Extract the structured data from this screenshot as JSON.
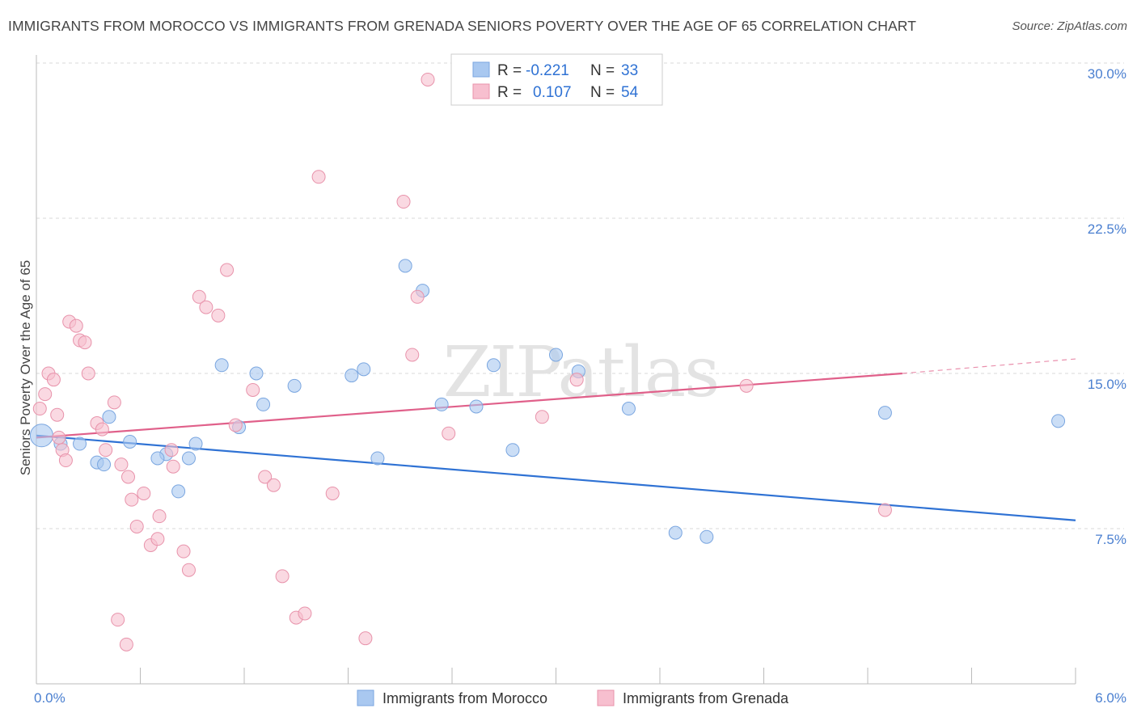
{
  "chart_data": {
    "type": "scatter",
    "title": "IMMIGRANTS FROM MOROCCO VS IMMIGRANTS FROM GRENADA SENIORS POVERTY OVER THE AGE OF 65 CORRELATION CHART",
    "source": "Source: ZipAtlas.com",
    "xlabel": "",
    "ylabel": "Seniors Poverty Over the Age of 65",
    "xlim": [
      0,
      6
    ],
    "ylim": [
      0,
      30
    ],
    "x_tick_labels": {
      "left": "0.0%",
      "right": "6.0%"
    },
    "y_ticks": [
      {
        "value": 7.5,
        "label": "7.5%"
      },
      {
        "value": 15,
        "label": "15.0%"
      },
      {
        "value": 22.5,
        "label": "22.5%"
      },
      {
        "value": 30,
        "label": "30.0%"
      }
    ],
    "watermark": "ZIPatlas",
    "legend": {
      "rows": [
        {
          "r_label": "R =",
          "r_value": "-0.221",
          "n_label": "N =",
          "n_value": "33"
        },
        {
          "r_label": "R =",
          "r_value": "0.107",
          "n_label": "N =",
          "n_value": "54"
        }
      ]
    },
    "series": [
      {
        "name": "Immigrants from Morocco",
        "color": "#a9c8f0",
        "stroke": "#7aa6e0",
        "line_color": "#2f72d4",
        "trend": {
          "x0": 0.0,
          "y0": 12.0,
          "x1": 6.0,
          "y1": 7.9
        },
        "points": [
          [
            0.03,
            12.0,
            "large"
          ],
          [
            0.14,
            11.6
          ],
          [
            0.25,
            11.6
          ],
          [
            0.35,
            10.7
          ],
          [
            0.42,
            12.9
          ],
          [
            0.39,
            10.6
          ],
          [
            0.88,
            10.9
          ],
          [
            0.75,
            11.1
          ],
          [
            0.82,
            9.3
          ],
          [
            0.7,
            10.9
          ],
          [
            0.54,
            11.7
          ],
          [
            0.92,
            11.6
          ],
          [
            1.17,
            12.4
          ],
          [
            1.27,
            15.0
          ],
          [
            1.31,
            13.5
          ],
          [
            1.49,
            14.4
          ],
          [
            1.07,
            15.4
          ],
          [
            1.82,
            14.9
          ],
          [
            1.89,
            15.2
          ],
          [
            1.97,
            10.9
          ],
          [
            2.13,
            20.2
          ],
          [
            2.23,
            19.0
          ],
          [
            2.34,
            13.5
          ],
          [
            2.54,
            13.4
          ],
          [
            2.64,
            15.4
          ],
          [
            2.75,
            11.3
          ],
          [
            3.0,
            15.9
          ],
          [
            3.13,
            15.1
          ],
          [
            3.42,
            13.3
          ],
          [
            4.9,
            13.1
          ],
          [
            5.9,
            12.7
          ],
          [
            3.69,
            7.3
          ],
          [
            3.87,
            7.1
          ]
        ]
      },
      {
        "name": "Immigrants from Grenada",
        "color": "#f7bfcf",
        "stroke": "#e893ab",
        "line_color": "#e0608a",
        "trend": {
          "x0": 0.0,
          "y0": 11.9,
          "x1": 5.0,
          "y1": 15.0,
          "dash_x1": 6.0,
          "dash_y1": 15.7
        },
        "points": [
          [
            0.02,
            13.3
          ],
          [
            0.05,
            14.0
          ],
          [
            0.07,
            15.0
          ],
          [
            0.12,
            13.0
          ],
          [
            0.1,
            14.7
          ],
          [
            0.13,
            11.9
          ],
          [
            0.15,
            11.3
          ],
          [
            0.17,
            10.8
          ],
          [
            0.19,
            17.5
          ],
          [
            0.23,
            17.3
          ],
          [
            0.25,
            16.6
          ],
          [
            0.28,
            16.5
          ],
          [
            0.3,
            15.0
          ],
          [
            0.35,
            12.6
          ],
          [
            0.38,
            12.3
          ],
          [
            0.4,
            11.3
          ],
          [
            0.45,
            13.6
          ],
          [
            0.49,
            10.6
          ],
          [
            0.53,
            10.0
          ],
          [
            0.55,
            8.9
          ],
          [
            0.58,
            7.6
          ],
          [
            0.62,
            9.2
          ],
          [
            0.66,
            6.7
          ],
          [
            0.7,
            7.0
          ],
          [
            0.71,
            8.1
          ],
          [
            0.78,
            11.3
          ],
          [
            0.79,
            10.5
          ],
          [
            0.85,
            6.4
          ],
          [
            0.88,
            5.5
          ],
          [
            0.94,
            18.7
          ],
          [
            0.98,
            18.2
          ],
          [
            1.05,
            17.8
          ],
          [
            1.1,
            20.0
          ],
          [
            1.15,
            12.5
          ],
          [
            1.25,
            14.2
          ],
          [
            1.32,
            10.0
          ],
          [
            1.37,
            9.6
          ],
          [
            1.42,
            5.2
          ],
          [
            1.5,
            3.2
          ],
          [
            1.55,
            3.4
          ],
          [
            1.63,
            24.5
          ],
          [
            1.71,
            9.2
          ],
          [
            1.9,
            2.2
          ],
          [
            2.12,
            23.3
          ],
          [
            2.17,
            15.9
          ],
          [
            2.2,
            18.7
          ],
          [
            2.26,
            29.2
          ],
          [
            2.38,
            12.1
          ],
          [
            2.92,
            12.9
          ],
          [
            3.12,
            14.7
          ],
          [
            4.1,
            14.4
          ],
          [
            4.9,
            8.4
          ],
          [
            0.47,
            3.1
          ],
          [
            0.52,
            1.9
          ]
        ]
      }
    ]
  }
}
